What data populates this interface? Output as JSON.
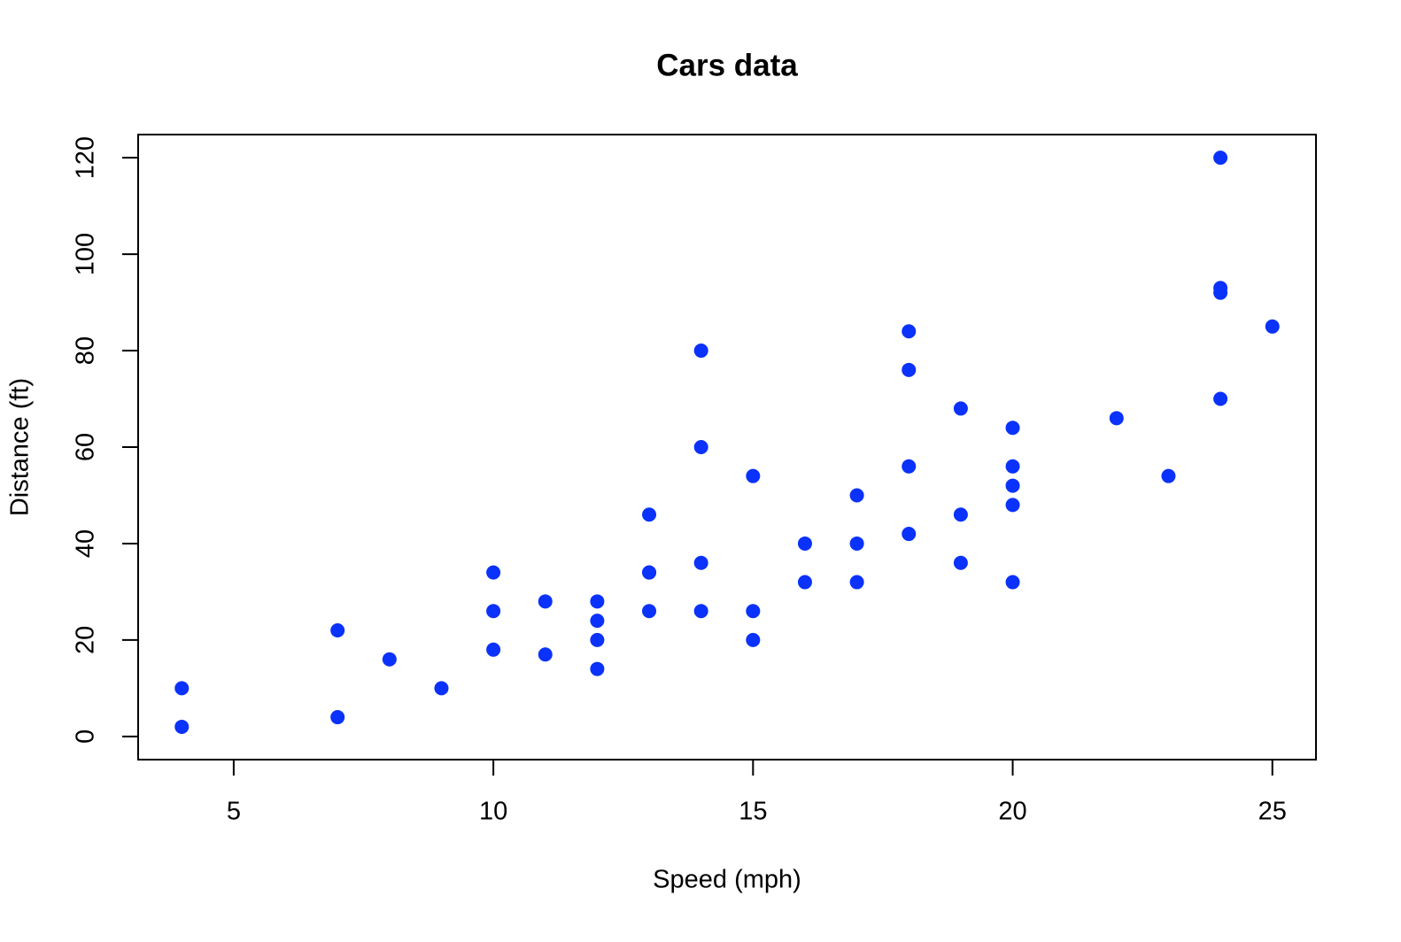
{
  "chart_data": {
    "type": "scatter",
    "title": "Cars data",
    "x_label": "Speed (mph)",
    "y_label": "Distance (ft)",
    "x": [
      4,
      4,
      7,
      7,
      8,
      9,
      10,
      10,
      10,
      11,
      11,
      12,
      12,
      12,
      12,
      13,
      13,
      13,
      13,
      14,
      14,
      14,
      14,
      15,
      15,
      15,
      16,
      16,
      17,
      17,
      17,
      18,
      18,
      18,
      18,
      19,
      19,
      19,
      20,
      20,
      20,
      20,
      20,
      22,
      23,
      24,
      24,
      24,
      24,
      25
    ],
    "y": [
      2,
      10,
      4,
      22,
      16,
      10,
      18,
      26,
      34,
      17,
      28,
      14,
      20,
      24,
      28,
      26,
      34,
      34,
      46,
      26,
      36,
      60,
      80,
      20,
      26,
      54,
      32,
      40,
      32,
      40,
      50,
      42,
      56,
      76,
      84,
      36,
      46,
      68,
      32,
      48,
      52,
      56,
      64,
      66,
      54,
      70,
      92,
      93,
      120,
      85
    ],
    "color": "#0a32fa",
    "xlim": [
      3.16,
      25.84
    ],
    "ylim": [
      -4.8,
      124.8
    ],
    "xticks": [
      5,
      10,
      15,
      20,
      25
    ],
    "yticks": [
      0,
      20,
      40,
      60,
      80,
      100,
      120
    ]
  }
}
